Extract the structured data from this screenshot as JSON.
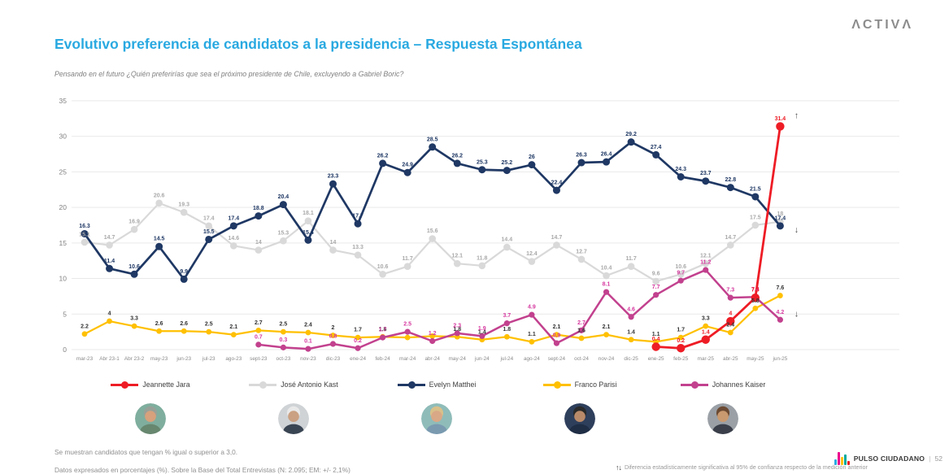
{
  "header": {
    "brand": "ΛCTIVΛ",
    "title": "Evolutivo preferencia de candidatos a la presidencia – Respuesta Espontánea",
    "subtitle": "Pensando en el futuro ¿Quién preferirías que sea el próximo presidente de Chile, excluyendo a Gabriel Boric?"
  },
  "chart_data": {
    "type": "line",
    "title": "Evolutivo preferencia de candidatos a la presidencia – Respuesta Espontánea",
    "xlabel": "",
    "ylabel": "",
    "ylim": [
      0,
      35
    ],
    "yticks": [
      0,
      5,
      10,
      15,
      20,
      25,
      30,
      35
    ],
    "grid": true,
    "legend_position": "bottom",
    "categories": [
      "mar-23",
      "Abr 23-1",
      "Abr 23-2",
      "may-23",
      "jun-23",
      "jul-23",
      "ago-23",
      "sept-23",
      "oct-23",
      "nov-23",
      "dic-23",
      "ene-24",
      "feb-24",
      "mar-24",
      "abr-24",
      "may-24",
      "jun-24",
      "jul-24",
      "ago-24",
      "sept-24",
      "oct-24",
      "nov-24",
      "dic-25",
      "ene-25",
      "feb-25",
      "mar-25",
      "abr-25",
      "may-25",
      "jun-25"
    ],
    "series": [
      {
        "name": "Jeannette Jara",
        "color": "#ee1c25",
        "label_color": "#ee1c25",
        "z": 5,
        "line_width": 2.8,
        "marker_r": 5.2,
        "values": [
          null,
          null,
          null,
          null,
          null,
          null,
          null,
          null,
          null,
          null,
          null,
          null,
          null,
          null,
          null,
          null,
          null,
          null,
          null,
          null,
          null,
          null,
          null,
          0.4,
          0.2,
          1.4,
          4,
          7.3,
          31.4
        ]
      },
      {
        "name": "José Antonio Kast",
        "color": "#d9d9d9",
        "label_color": "#a9a9a9",
        "z": 1,
        "line_width": 2.2,
        "marker_r": 4.3,
        "values": [
          15.1,
          14.7,
          16.9,
          20.6,
          19.3,
          17.4,
          14.6,
          14,
          15.3,
          18.1,
          14,
          13.3,
          10.6,
          11.7,
          15.6,
          12.1,
          11.8,
          14.4,
          12.4,
          14.7,
          12.7,
          10.4,
          11.7,
          9.6,
          10.6,
          12.1,
          14.7,
          17.5,
          18
        ]
      },
      {
        "name": "Evelyn Matthei",
        "color": "#1f3864",
        "label_color": "#1f3864",
        "z": 4,
        "line_width": 2.7,
        "marker_r": 4.5,
        "values": [
          16.3,
          11.4,
          10.6,
          14.5,
          9.9,
          15.5,
          17.4,
          18.8,
          20.4,
          15.4,
          23.3,
          17.7,
          26.2,
          24.9,
          28.5,
          26.2,
          25.3,
          25.2,
          26,
          22.4,
          26.3,
          26.4,
          29.2,
          27.4,
          24.3,
          23.7,
          22.8,
          21.5,
          17.4
        ]
      },
      {
        "name": "Franco Parisi",
        "color": "#ffc000",
        "label_color": "#333333",
        "z": 2,
        "line_width": 2.2,
        "marker_r": 3.4,
        "values": [
          2.2,
          4,
          3.3,
          2.6,
          2.6,
          2.5,
          2.1,
          2.7,
          2.5,
          2.4,
          2,
          1.7,
          1.8,
          1.7,
          1.9,
          1.8,
          1.4,
          1.8,
          1.1,
          2.1,
          1.6,
          2.1,
          1.4,
          1.1,
          1.7,
          3.3,
          2.4,
          5.8,
          7.6
        ]
      },
      {
        "name": "Johannes Kaiser",
        "color": "#c2418e",
        "label_color": "#d6399f",
        "z": 3,
        "line_width": 2.5,
        "marker_r": 3.6,
        "values": [
          null,
          null,
          null,
          null,
          null,
          null,
          null,
          0.7,
          0.3,
          0.1,
          0.8,
          0.2,
          1.7,
          2.5,
          1.2,
          2.3,
          1.9,
          3.7,
          4.9,
          0.9,
          2.7,
          8.1,
          4.6,
          7.7,
          9.7,
          11.2,
          7.3,
          7.4,
          4.2
        ]
      }
    ],
    "hidden_labels": {
      "Franco Parisi": [
        13,
        14
      ]
    },
    "arrows": [
      {
        "series": "Jeannette Jara",
        "category": "jun-25",
        "direction": "up",
        "glyph": "↑",
        "dx": 20,
        "dy": -10,
        "color": "#3f3f3f"
      },
      {
        "series": "Evelyn Matthei",
        "category": "jun-25",
        "direction": "down",
        "glyph": "↓",
        "dx": 20,
        "dy": 8,
        "color": "#3f3f3f"
      },
      {
        "series": "Johannes Kaiser",
        "category": "jun-25",
        "direction": "down",
        "glyph": "↓",
        "dx": 20,
        "dy": -4,
        "color": "#3f3f3f"
      }
    ]
  },
  "avatars": [
    {
      "name": "Jeannette Jara",
      "bg": "#7fae9e",
      "skin": "#d6a17c",
      "hair": "#97a097",
      "body": "#67876f"
    },
    {
      "name": "José Antonio Kast",
      "bg": "#cfd3d6",
      "skin": "#caa183",
      "hair": "#e9e9e9",
      "body": "#3a4553"
    },
    {
      "name": "Evelyn Matthei",
      "bg": "#8fbcb9",
      "skin": "#d9a886",
      "hair": "#d9c08a",
      "body": "#7a9ab0"
    },
    {
      "name": "Franco Parisi",
      "bg": "#2e3f5c",
      "skin": "#b98a6a",
      "hair": "#2a2a2a",
      "body": "#1f2d45"
    },
    {
      "name": "Johannes Kaiser",
      "bg": "#9aa0a6",
      "skin": "#c9996f",
      "hair": "#6b4a33",
      "body": "#3a3f4a"
    }
  ],
  "footer": {
    "note1": "Se muestran candidatos que tengan % igual o superior a 3,0.",
    "note2": "Datos expresados en porcentajes (%). Sobre la Base del Total Entrevistas (N: 2.095; EM: +/- 2,1%)",
    "sig_arrows": "↑↓",
    "significance": "Diferencia estadísticamente significativa al 95% de confianza respecto de la medición anterior",
    "brand": "PULSO CIUDADANO",
    "separator": "|",
    "page": "52"
  }
}
